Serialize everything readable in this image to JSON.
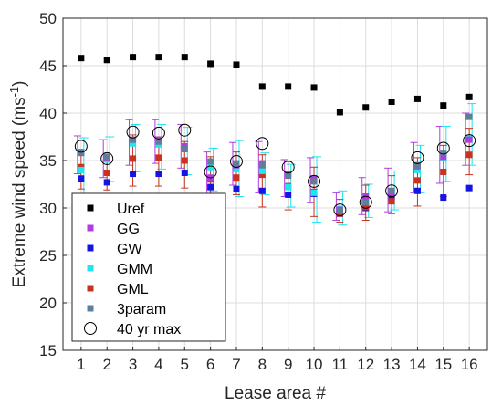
{
  "chart_data": {
    "type": "scatter",
    "xlabel": "Lease area #",
    "ylabel": {
      "main": "Extreme wind speed (ms",
      "sup": "-1",
      "close": ")"
    },
    "x": [
      1,
      2,
      3,
      4,
      5,
      6,
      7,
      8,
      9,
      10,
      11,
      12,
      13,
      14,
      15,
      16
    ],
    "xticks": [
      "1",
      "2",
      "3",
      "4",
      "5",
      "6",
      "7",
      "8",
      "9",
      "10",
      "11",
      "12",
      "13",
      "14",
      "15",
      "16"
    ],
    "xlim": [
      0.3,
      16.7
    ],
    "ylim": [
      15,
      50
    ],
    "yticks": [
      "15",
      "20",
      "25",
      "30",
      "35",
      "40",
      "45",
      "50"
    ],
    "grid": true,
    "legend_location": "lower-left",
    "series": [
      {
        "name": "Uref",
        "marker": "square",
        "color": "#000000",
        "values": [
          45.8,
          45.6,
          45.9,
          45.9,
          45.9,
          45.2,
          45.1,
          42.8,
          42.8,
          42.7,
          40.1,
          40.6,
          41.2,
          41.5,
          40.8,
          41.7
        ]
      },
      {
        "name": "GG",
        "marker": "square",
        "color": "#b23be0",
        "values": [
          35.8,
          35.3,
          37.2,
          37.2,
          36.5,
          33.2,
          34.5,
          34.7,
          33.6,
          33.1,
          29.8,
          31.2,
          31.6,
          34.4,
          35.4,
          37.2
        ],
        "err_low": [
          33.6,
          33.2,
          34.5,
          34.7,
          34.2,
          31.5,
          32.4,
          31.6,
          31.2,
          30.6,
          28.7,
          29.3,
          29.6,
          31.6,
          32.6,
          34.5
        ],
        "err_high": [
          37.6,
          37.2,
          39.3,
          39.3,
          38.8,
          35.9,
          36.9,
          37.0,
          35.1,
          35.3,
          31.6,
          33.2,
          34.2,
          36.9,
          38.6,
          40.0
        ]
      },
      {
        "name": "GW",
        "marker": "square",
        "color": "#1414e6",
        "values": [
          33.1,
          32.7,
          33.6,
          33.6,
          33.7,
          32.2,
          32.0,
          31.8,
          31.4,
          31.5,
          29.4,
          30.0,
          31.1,
          31.8,
          31.1,
          32.1
        ]
      },
      {
        "name": "GMM",
        "marker": "square",
        "color": "#1ee6f0",
        "values": [
          34.0,
          35.1,
          36.8,
          36.7,
          36.3,
          34.3,
          34.1,
          33.9,
          32.2,
          31.6,
          29.9,
          30.8,
          31.8,
          34.0,
          35.3,
          37.3
        ],
        "err_low": [
          30.9,
          32.8,
          33.8,
          34.1,
          33.5,
          31.8,
          31.2,
          31.4,
          30.1,
          28.5,
          28.2,
          29.0,
          29.8,
          31.6,
          32.8,
          34.5
        ],
        "err_high": [
          37.4,
          37.5,
          38.8,
          38.8,
          38.5,
          36.3,
          37.1,
          35.8,
          34.6,
          35.4,
          31.8,
          32.5,
          33.9,
          36.6,
          38.6,
          41.0
        ]
      },
      {
        "name": "GML",
        "marker": "square",
        "color": "#c8321e",
        "values": [
          34.3,
          33.7,
          35.2,
          35.3,
          35.0,
          33.0,
          33.2,
          33.5,
          32.3,
          31.7,
          29.4,
          30.1,
          30.7,
          32.9,
          33.8,
          35.6
        ],
        "err_low": [
          32.0,
          31.9,
          32.3,
          32.3,
          32.1,
          30.5,
          31.4,
          30.1,
          29.8,
          29.1,
          28.5,
          28.7,
          29.4,
          30.2,
          31.2,
          33.5
        ],
        "err_high": [
          35.9,
          35.4,
          37.7,
          37.5,
          37.0,
          35.4,
          35.9,
          35.6,
          34.9,
          34.3,
          30.9,
          32.4,
          33.4,
          35.3,
          36.6,
          38.4
        ]
      },
      {
        "name": "3param",
        "marker": "square",
        "color": "#5f7f99",
        "values": [
          35.9,
          35.4,
          37.2,
          37.0,
          36.2,
          34.9,
          34.7,
          34.5,
          33.4,
          32.8,
          29.7,
          30.6,
          31.8,
          34.5,
          35.8,
          39.6
        ]
      },
      {
        "name": "40 yr max",
        "marker": "circle",
        "color": "#000000",
        "values": [
          36.5,
          35.2,
          38.0,
          37.9,
          38.2,
          33.8,
          34.9,
          36.8,
          34.3,
          32.8,
          29.8,
          30.6,
          31.8,
          35.3,
          36.3,
          37.1
        ]
      }
    ]
  }
}
